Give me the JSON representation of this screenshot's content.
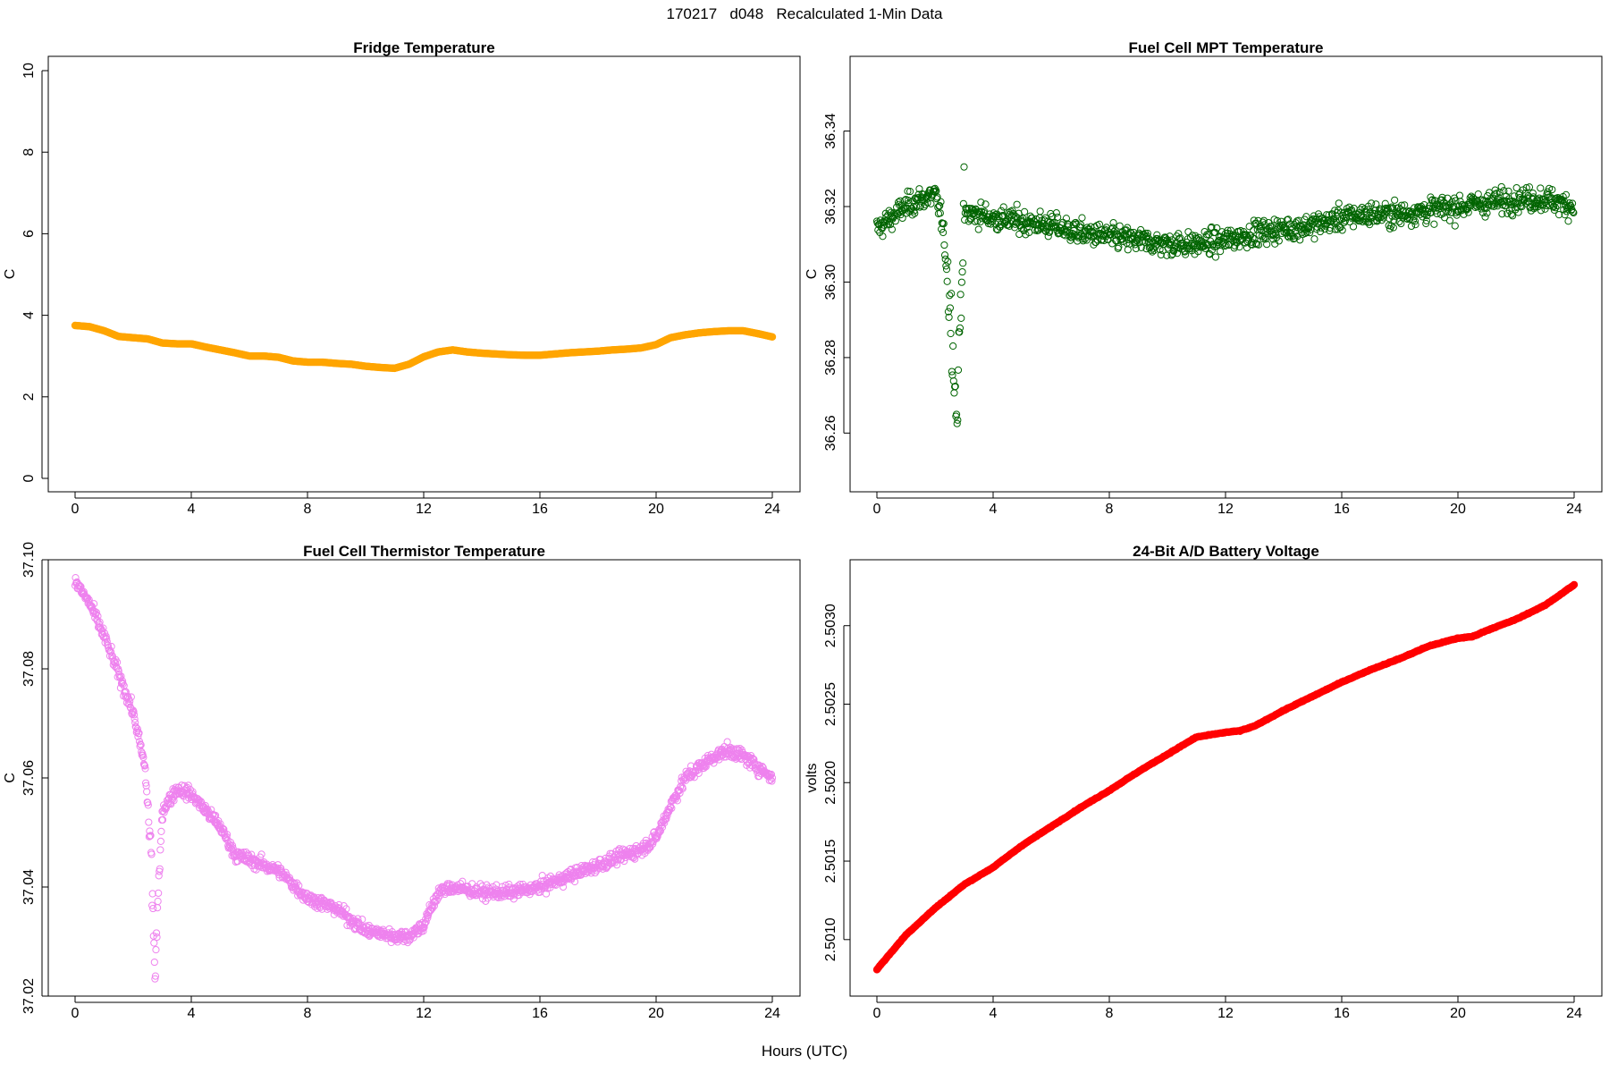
{
  "figure": {
    "suptitle": "170217   d048   Recalculated 1-Min Data",
    "xlabel": "Hours (UTC)"
  },
  "chart_data": [
    {
      "type": "line",
      "title": "Fridge Temperature",
      "xlabel": "Hours (UTC)",
      "ylabel": "C",
      "xlim": [
        0,
        24
      ],
      "ylim": [
        0,
        10
      ],
      "xticks": [
        0,
        4,
        8,
        12,
        16,
        20,
        24
      ],
      "yticks": [
        0,
        2,
        4,
        6,
        8,
        10
      ],
      "ytick_labels": [
        "0",
        "2",
        "4",
        "6",
        "8",
        "10"
      ],
      "color": "#FFA500",
      "series": [
        {
          "name": "Fridge Temperature",
          "x": [
            0,
            0.5,
            1,
            1.5,
            2,
            2.5,
            3,
            3.5,
            4,
            4.5,
            5,
            5.5,
            6,
            6.5,
            7,
            7.5,
            8,
            8.5,
            9,
            9.5,
            10,
            10.5,
            11,
            11.5,
            12,
            12.5,
            13,
            13.5,
            14,
            14.5,
            15,
            15.5,
            16,
            16.5,
            17,
            17.5,
            18,
            18.5,
            19,
            19.5,
            20,
            20.5,
            21,
            21.5,
            22,
            22.5,
            23,
            23.5,
            24
          ],
          "y": [
            3.75,
            3.72,
            3.62,
            3.48,
            3.45,
            3.42,
            3.32,
            3.3,
            3.3,
            3.22,
            3.15,
            3.08,
            3.0,
            3.0,
            2.97,
            2.88,
            2.85,
            2.85,
            2.82,
            2.8,
            2.75,
            2.72,
            2.7,
            2.8,
            2.98,
            3.1,
            3.15,
            3.1,
            3.07,
            3.05,
            3.03,
            3.02,
            3.02,
            3.05,
            3.08,
            3.1,
            3.12,
            3.15,
            3.17,
            3.2,
            3.28,
            3.45,
            3.52,
            3.57,
            3.6,
            3.62,
            3.62,
            3.55,
            3.47
          ]
        }
      ]
    },
    {
      "type": "scatter",
      "title": "Fuel Cell MPT Temperature",
      "xlabel": "Hours (UTC)",
      "ylabel": "C",
      "xlim": [
        0,
        24
      ],
      "ylim": [
        36.248,
        36.356
      ],
      "xticks": [
        0,
        4,
        8,
        12,
        16,
        20,
        24
      ],
      "yticks": [
        36.26,
        36.28,
        36.3,
        36.32,
        36.34
      ],
      "ytick_labels": [
        "36.26",
        "36.28",
        "36.30",
        "36.32",
        "36.34"
      ],
      "color": "#006400",
      "series": [
        {
          "name": "Fuel Cell MPT Temperature",
          "x": [
            0,
            0.5,
            1,
            1.5,
            2,
            2.2,
            2.4,
            2.6,
            2.75,
            2.9,
            3.0,
            3.5,
            4,
            5,
            6,
            7,
            8,
            9,
            10,
            11,
            12,
            13,
            14,
            15,
            16,
            17,
            18,
            19,
            20,
            21,
            22,
            23,
            24
          ],
          "y": [
            36.314,
            36.317,
            36.32,
            36.322,
            36.323,
            36.318,
            36.305,
            36.285,
            36.262,
            36.3,
            36.318,
            36.318,
            36.317,
            36.316,
            36.315,
            36.313,
            36.312,
            36.311,
            36.31,
            36.31,
            36.311,
            36.313,
            36.314,
            36.315,
            36.317,
            36.318,
            36.318,
            36.319,
            36.32,
            36.321,
            36.322,
            36.322,
            36.32
          ]
        }
      ]
    },
    {
      "type": "scatter",
      "title": "Fuel Cell Thermistor Temperature",
      "xlabel": "Hours (UTC)",
      "ylabel": "C",
      "xlim": [
        0,
        24
      ],
      "ylim": [
        37.02,
        37.1
      ],
      "xticks": [
        0,
        4,
        8,
        12,
        16,
        20,
        24
      ],
      "yticks": [
        37.02,
        37.04,
        37.06,
        37.08,
        37.1
      ],
      "ytick_labels": [
        "37.02",
        "37.04",
        "37.06",
        "37.08",
        "37.10"
      ],
      "color": "#EE82EE",
      "series": [
        {
          "name": "Fuel Cell Thermistor Temperature",
          "x": [
            0,
            0.5,
            1,
            1.5,
            2,
            2.4,
            2.6,
            2.75,
            3.0,
            3.5,
            4,
            4.5,
            5,
            5.5,
            6,
            7,
            8,
            9,
            10,
            11,
            11.5,
            12,
            12.5,
            13,
            14,
            15,
            16,
            17,
            18,
            19,
            19.5,
            20,
            20.5,
            21,
            22,
            22.5,
            23,
            23.5,
            24
          ],
          "y": [
            37.096,
            37.092,
            37.086,
            37.079,
            37.072,
            37.062,
            37.048,
            37.024,
            37.054,
            37.058,
            37.057,
            37.054,
            37.051,
            37.046,
            37.045,
            37.043,
            37.038,
            37.036,
            37.032,
            37.031,
            37.031,
            37.033,
            37.039,
            37.04,
            37.039,
            37.039,
            37.04,
            37.042,
            37.044,
            37.046,
            37.047,
            37.049,
            37.055,
            37.06,
            37.064,
            37.065,
            37.064,
            37.062,
            37.06
          ]
        }
      ]
    },
    {
      "type": "line",
      "title": "24-Bit A/D Battery Voltage",
      "xlabel": "Hours (UTC)",
      "ylabel": "volts",
      "xlim": [
        0,
        24
      ],
      "ylim": [
        2.50064,
        2.50342
      ],
      "xticks": [
        0,
        4,
        8,
        12,
        16,
        20,
        24
      ],
      "yticks": [
        2.501,
        2.5015,
        2.502,
        2.5025,
        2.503
      ],
      "ytick_labels": [
        "2.5010",
        "2.5015",
        "2.5020",
        "2.5025",
        "2.5030"
      ],
      "color": "#FF0000",
      "series": [
        {
          "name": "24-Bit A/D Battery Voltage",
          "x": [
            0,
            1,
            2,
            3,
            4,
            5,
            6,
            7,
            8,
            9,
            10,
            11,
            12,
            12.5,
            13,
            14,
            15,
            16,
            17,
            18,
            19,
            20,
            20.5,
            21,
            22,
            23,
            24
          ],
          "y": [
            2.50081,
            2.50103,
            2.5012,
            2.50135,
            2.50146,
            2.5016,
            2.50172,
            2.50184,
            2.50195,
            2.50207,
            2.50218,
            2.50229,
            2.50232,
            2.50233,
            2.50236,
            2.50246,
            2.50255,
            2.50264,
            2.50272,
            2.50279,
            2.50287,
            2.50292,
            2.50293,
            2.50297,
            2.50304,
            2.50313,
            2.50326
          ]
        }
      ]
    }
  ]
}
